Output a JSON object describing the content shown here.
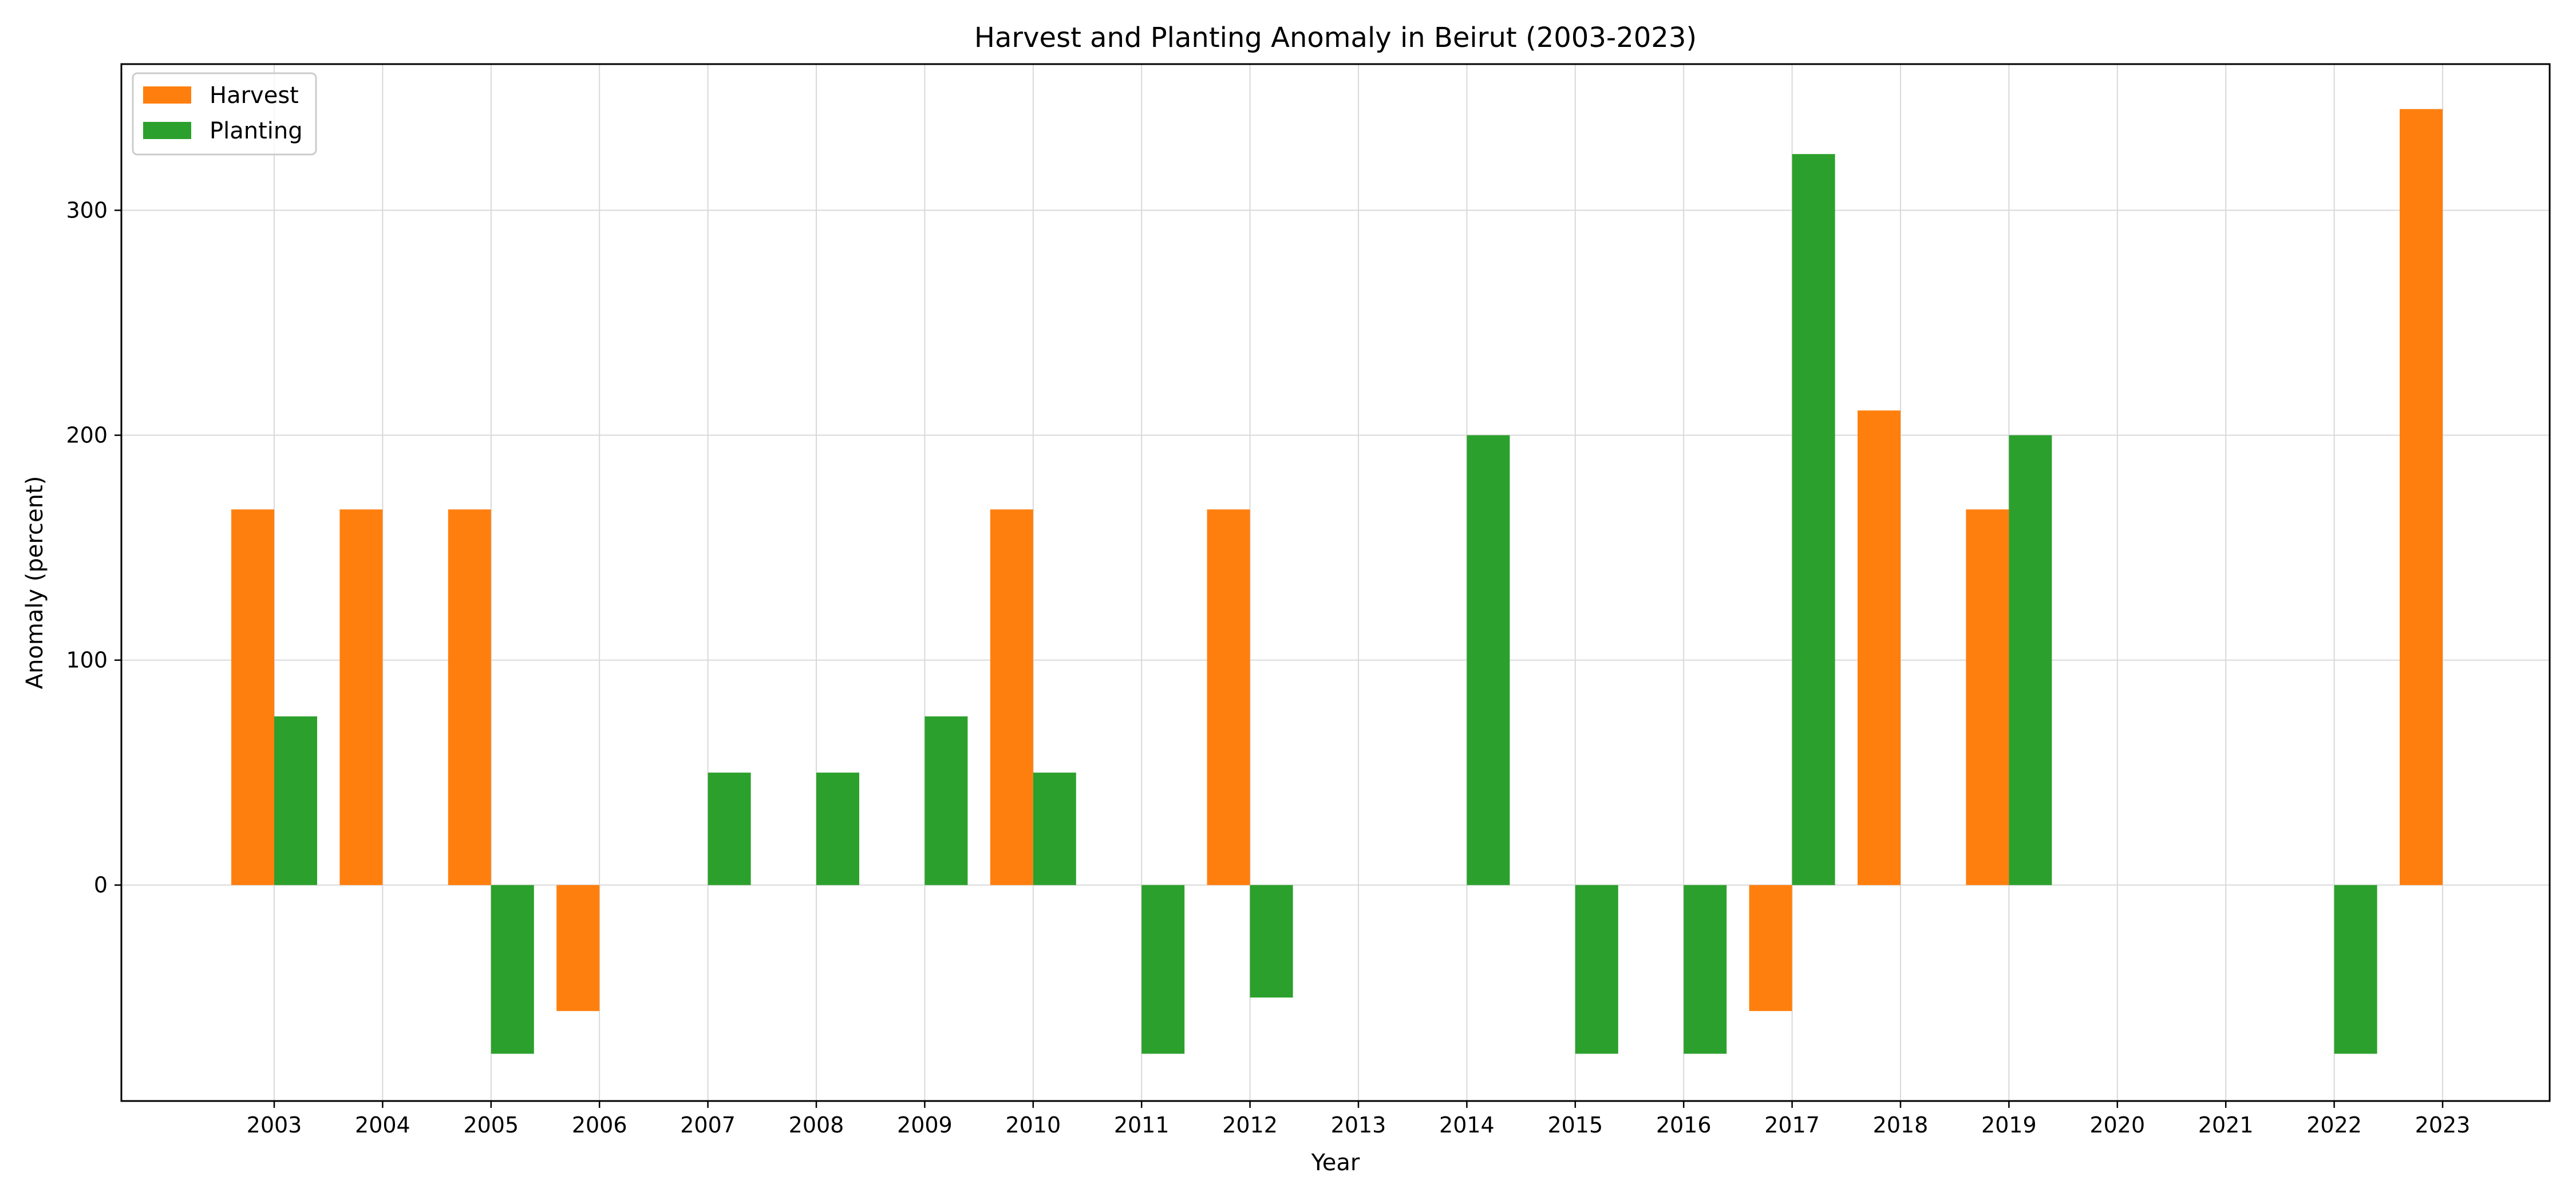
{
  "chart_data": {
    "type": "bar",
    "title": "Harvest and Planting Anomaly in Beirut (2003-2023)",
    "xlabel": "Year",
    "ylabel": "Anomaly (percent)",
    "categories": [
      "2003",
      "2004",
      "2005",
      "2006",
      "2007",
      "2008",
      "2009",
      "2010",
      "2011",
      "2012",
      "2013",
      "2014",
      "2015",
      "2016",
      "2017",
      "2018",
      "2019",
      "2020",
      "2021",
      "2022",
      "2023"
    ],
    "series": [
      {
        "name": "Harvest",
        "color": "#ff7f0e",
        "values": [
          167,
          167,
          167,
          -56,
          null,
          null,
          null,
          167,
          null,
          167,
          null,
          null,
          null,
          null,
          -56,
          211,
          167,
          null,
          null,
          null,
          345
        ]
      },
      {
        "name": "Planting",
        "color": "#2ca02c",
        "values": [
          75,
          null,
          -75,
          null,
          50,
          50,
          75,
          50,
          -75,
          -50,
          null,
          200,
          -75,
          -75,
          325,
          null,
          200,
          null,
          null,
          -75,
          null
        ]
      }
    ],
    "ylim": [
      -96,
      365
    ],
    "yticks": [
      0,
      100,
      200,
      300
    ],
    "grid": true,
    "legend_position": "top-left"
  }
}
